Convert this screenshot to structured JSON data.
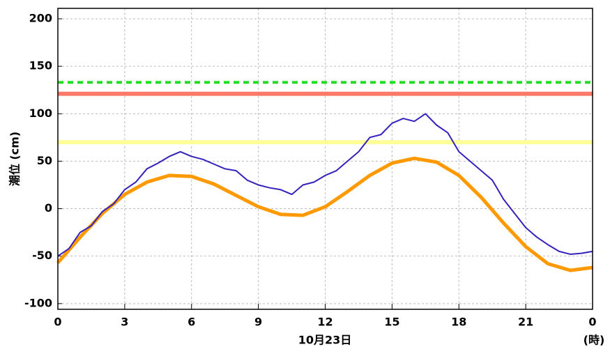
{
  "chart_data": {
    "type": "line",
    "y_label": "潮位 (cm)",
    "x_label": "10月23日",
    "x_unit": "(時)",
    "xlim": [
      0,
      24
    ],
    "ylim": [
      -106,
      211
    ],
    "xticks": [
      0,
      3,
      6,
      9,
      12,
      15,
      18,
      21,
      {
        "value": 24,
        "label": "0"
      }
    ],
    "yticks": [
      -100,
      -50,
      0,
      50,
      100,
      150,
      200
    ],
    "grid": true,
    "reference_lines": [
      {
        "value": 133,
        "color": "#22dd22",
        "style": "dashed"
      },
      {
        "value": 121,
        "color": "#ff7766",
        "style": "solid"
      },
      {
        "value": 70,
        "color": "#ffff99",
        "style": "solid"
      }
    ],
    "series": [
      {
        "color": "#ff9900",
        "width": 5,
        "x": [
          0,
          1,
          2,
          3,
          4,
          5,
          6,
          7,
          8,
          9,
          10,
          11,
          12,
          13,
          14,
          15,
          16,
          17,
          18,
          19,
          20,
          21,
          22,
          23,
          24
        ],
        "values": [
          -57,
          -30,
          -5,
          15,
          28,
          35,
          34,
          26,
          14,
          2,
          -6,
          -7,
          2,
          18,
          35,
          48,
          53,
          49,
          35,
          12,
          -15,
          -40,
          -58,
          -65,
          -62
        ]
      },
      {
        "color": "#3322bb",
        "width": 2,
        "x": [
          0,
          0.5,
          1,
          1.5,
          2,
          2.5,
          3,
          3.5,
          4,
          4.5,
          5,
          5.5,
          6,
          6.5,
          7,
          7.5,
          8,
          8.5,
          9,
          9.5,
          10,
          10.5,
          11,
          11.5,
          12,
          12.5,
          13,
          13.5,
          14,
          14.5,
          15,
          15.5,
          16,
          16.5,
          17,
          17.5,
          18,
          18.5,
          19,
          19.5,
          20,
          20.5,
          21,
          21.5,
          22,
          22.5,
          23,
          23.5,
          24
        ],
        "values": [
          -50,
          -42,
          -25,
          -18,
          -3,
          5,
          20,
          28,
          42,
          48,
          55,
          60,
          55,
          52,
          47,
          42,
          40,
          30,
          25,
          22,
          20,
          15,
          25,
          28,
          35,
          40,
          50,
          60,
          75,
          78,
          90,
          95,
          92,
          100,
          88,
          80,
          60,
          50,
          40,
          30,
          10,
          -5,
          -20,
          -30,
          -38,
          -45,
          -48,
          -47,
          -45
        ]
      }
    ]
  }
}
